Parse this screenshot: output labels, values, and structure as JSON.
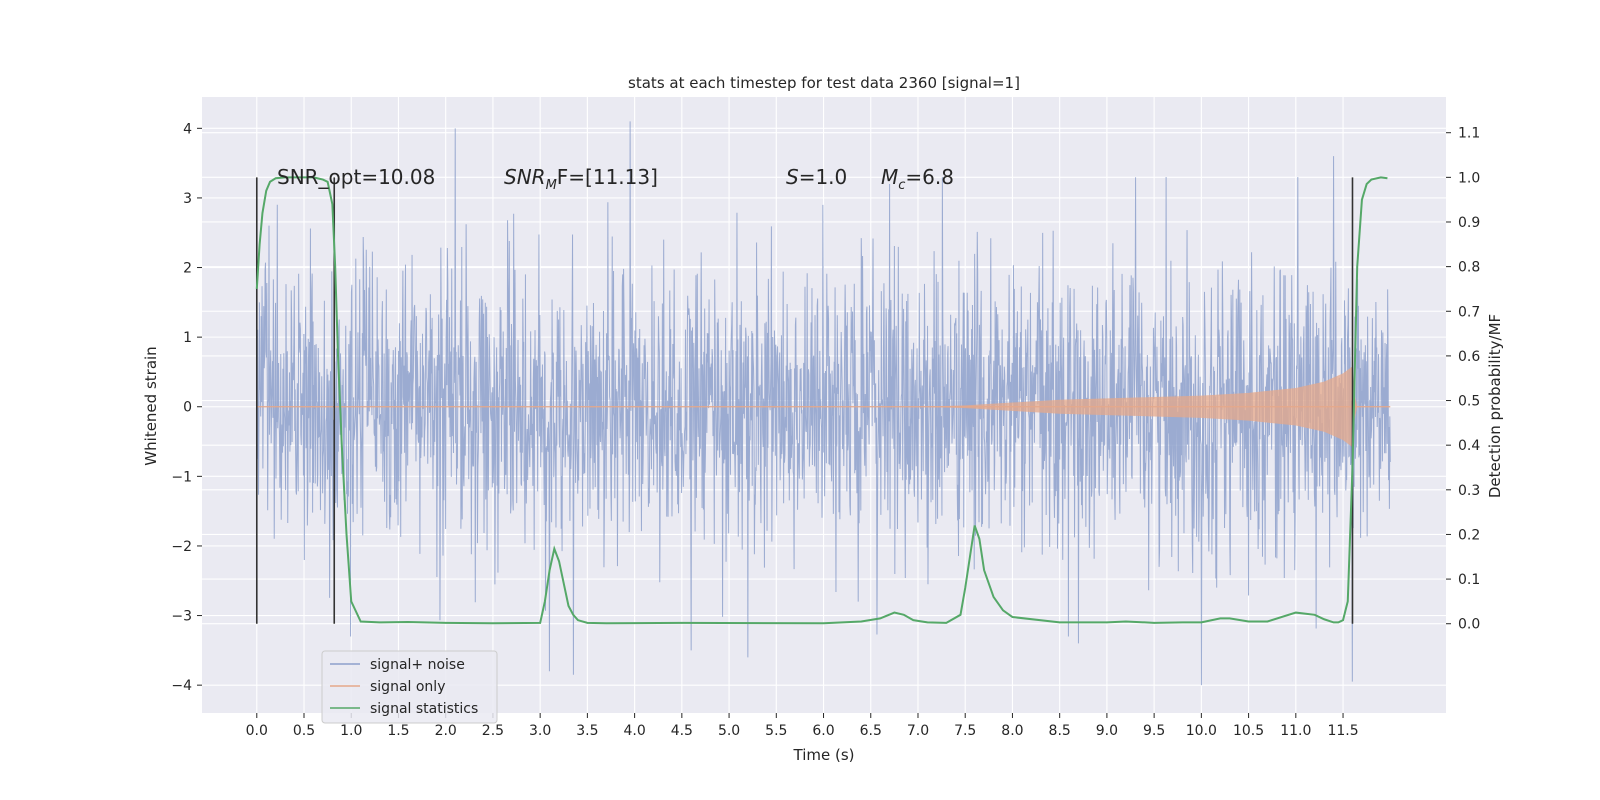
{
  "chart_data": {
    "type": "line",
    "title": "stats at each timestep for test data 2360 [signal=1]",
    "xlabel": "Time (s)",
    "ylabel": "Whitened strain",
    "ylabel_right": "Detection probability/MF",
    "xlim": [
      -0.58,
      12.59
    ],
    "ylim": [
      -4.4,
      4.45
    ],
    "ylim_right": [
      -0.2,
      1.18
    ],
    "x_ticks": [
      "0.0",
      "0.5",
      "1.0",
      "1.5",
      "2.0",
      "2.5",
      "3.0",
      "3.5",
      "4.0",
      "4.5",
      "5.0",
      "5.5",
      "6.0",
      "6.5",
      "7.0",
      "7.5",
      "8.0",
      "8.5",
      "9.0",
      "9.5",
      "10.0",
      "10.5",
      "11.0",
      "11.5"
    ],
    "y_ticks": [
      "4",
      "3",
      "2",
      "1",
      "0",
      "−1",
      "−2",
      "−3",
      "−4"
    ],
    "y_right_ticks": [
      "1.1",
      "1.0",
      "0.9",
      "0.8",
      "0.7",
      "0.6",
      "0.5",
      "0.4",
      "0.3",
      "0.2",
      "0.1",
      "0.0"
    ],
    "grid": true,
    "legend": {
      "placement": "lower-left",
      "entries": [
        {
          "label": "signal+ noise",
          "color": "#8da0cb"
        },
        {
          "label": "signal only",
          "color": "#e5a88a"
        },
        {
          "label": "signal statistics",
          "color": "#55a868"
        }
      ]
    },
    "annotations": {
      "snr_opt": "SNR_opt=10.08",
      "snr_mf_main": "SNR",
      "snr_mf_sub": "M",
      "snr_mf_rest": "F=[11.13]",
      "s_main": "S",
      "s_rest": "=1.0",
      "mc_main": "M",
      "mc_sub": "c",
      "mc_rest": "=6.8"
    },
    "series": [
      {
        "name": "signal+ noise",
        "color": "#8da0cb",
        "x_range": [
          0.0,
          12.0
        ],
        "typical_amplitude": 1.3,
        "notable_peaks": [
          {
            "x": 2.1,
            "y": 4.0
          },
          {
            "x": 3.95,
            "y": 4.1
          },
          {
            "x": 3.1,
            "y": -3.8
          },
          {
            "x": 3.35,
            "y": -3.85
          },
          {
            "x": 10.0,
            "y": -4.0
          },
          {
            "x": 11.6,
            "y": -3.95
          },
          {
            "x": 11.4,
            "y": 3.6
          },
          {
            "x": 6.7,
            "y": 3.2
          },
          {
            "x": 4.6,
            "y": -3.5
          },
          {
            "x": 8.7,
            "y": -3.4
          },
          {
            "x": 5.2,
            "y": -3.6
          }
        ]
      },
      {
        "name": "signal only",
        "color": "#e5a88a",
        "envelope": [
          [
            7.0,
            0.0
          ],
          [
            7.5,
            0.02
          ],
          [
            8.0,
            0.06
          ],
          [
            8.5,
            0.1
          ],
          [
            9.0,
            0.12
          ],
          [
            9.5,
            0.14
          ],
          [
            10.0,
            0.16
          ],
          [
            10.5,
            0.2
          ],
          [
            11.0,
            0.27
          ],
          [
            11.3,
            0.36
          ],
          [
            11.5,
            0.48
          ],
          [
            11.6,
            0.58
          ],
          [
            11.62,
            0.2
          ],
          [
            11.65,
            0.0
          ]
        ]
      },
      {
        "name": "signal statistics",
        "color": "#55a868",
        "x": [
          0.0,
          0.03,
          0.06,
          0.1,
          0.14,
          0.2,
          0.3,
          0.4,
          0.5,
          0.6,
          0.7,
          0.75,
          0.8,
          0.83,
          0.86,
          0.9,
          0.95,
          1.0,
          1.1,
          1.3,
          1.6,
          2.0,
          2.5,
          3.0,
          3.05,
          3.1,
          3.15,
          3.2,
          3.25,
          3.3,
          3.35,
          3.4,
          3.5,
          3.7,
          4.5,
          6.0,
          6.4,
          6.6,
          6.75,
          6.85,
          6.95,
          7.1,
          7.3,
          7.45,
          7.5,
          7.55,
          7.6,
          7.65,
          7.7,
          7.8,
          7.9,
          8.0,
          8.5,
          9.0,
          9.2,
          9.5,
          9.8,
          10.0,
          10.2,
          10.3,
          10.5,
          10.7,
          11.0,
          11.2,
          11.3,
          11.4,
          11.45,
          11.5,
          11.55,
          11.6,
          11.65,
          11.7,
          11.75,
          11.8,
          11.9,
          11.97
        ],
        "values": [
          0.75,
          0.85,
          0.92,
          0.97,
          0.99,
          0.998,
          1.0,
          1.0,
          1.0,
          1.0,
          0.995,
          0.99,
          0.94,
          0.8,
          0.6,
          0.4,
          0.2,
          0.05,
          0.005,
          0.003,
          0.004,
          0.002,
          0.001,
          0.002,
          0.05,
          0.12,
          0.168,
          0.14,
          0.09,
          0.04,
          0.02,
          0.008,
          0.002,
          0.001,
          0.002,
          0.001,
          0.005,
          0.012,
          0.025,
          0.02,
          0.008,
          0.003,
          0.002,
          0.02,
          0.08,
          0.15,
          0.22,
          0.19,
          0.12,
          0.06,
          0.03,
          0.015,
          0.003,
          0.003,
          0.005,
          0.002,
          0.003,
          0.003,
          0.012,
          0.012,
          0.005,
          0.005,
          0.025,
          0.02,
          0.01,
          0.003,
          0.003,
          0.008,
          0.05,
          0.35,
          0.8,
          0.95,
          0.985,
          0.995,
          1.0,
          0.998
        ],
        "markers_x": [
          0.0,
          0.82,
          11.6
        ]
      }
    ]
  }
}
